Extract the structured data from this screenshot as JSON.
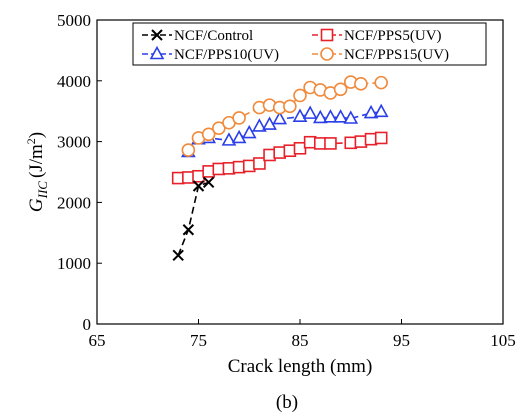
{
  "chart_data": {
    "type": "scatter",
    "xlabel": "Crack length (mm)",
    "ylabel_main": "G",
    "ylabel_sub": "IIC",
    "ylabel_unit": "(J/m",
    "ylabel_sup": "2",
    "ylabel_close": ")",
    "panel_label": "(b)",
    "xlim": [
      65,
      105
    ],
    "ylim": [
      0,
      5000
    ],
    "xticks": [
      65,
      75,
      85,
      95,
      105
    ],
    "yticks": [
      0,
      1000,
      2000,
      3000,
      4000,
      5000
    ],
    "grid": false,
    "legend_position": "top",
    "series": [
      {
        "name": "NCF/Control",
        "color": "#000000",
        "marker": "x",
        "line": "dashed",
        "x": [
          73.0,
          74.0,
          75.0,
          76.0
        ],
        "y": [
          1130,
          1550,
          2270,
          2330
        ]
      },
      {
        "name": "NCF/PPS5(UV)",
        "color": "#e8202a",
        "marker": "square",
        "line": "dashed",
        "x": [
          73.0,
          74.0,
          75.0,
          76.0,
          77.0,
          78.0,
          79.0,
          80.0,
          81.0,
          82.0,
          83.0,
          84.0,
          85.0,
          86.0,
          87.0,
          88.0,
          90.0,
          91.0,
          92.0,
          93.0
        ],
        "y": [
          2400,
          2410,
          2430,
          2510,
          2550,
          2560,
          2580,
          2600,
          2640,
          2780,
          2820,
          2850,
          2890,
          2990,
          2970,
          2970,
          2980,
          3000,
          3040,
          3060
        ]
      },
      {
        "name": "NCF/PPS10(UV)",
        "color": "#2a3fe8",
        "marker": "triangle",
        "line": "dashed",
        "x": [
          74.0,
          75.0,
          76.0,
          78.0,
          79.0,
          80.0,
          81.0,
          82.0,
          83.0,
          85.0,
          86.0,
          87.0,
          88.0,
          89.0,
          90.0,
          92.0,
          93.0
        ],
        "y": [
          2830,
          3040,
          3060,
          3020,
          3060,
          3140,
          3250,
          3280,
          3370,
          3410,
          3460,
          3390,
          3400,
          3400,
          3380,
          3470,
          3490
        ]
      },
      {
        "name": "NCF/PPS15(UV)",
        "color": "#f08a3c",
        "marker": "circle",
        "line": "dashed",
        "x": [
          74.0,
          75.0,
          76.0,
          77.0,
          78.0,
          79.0,
          81.0,
          82.0,
          83.0,
          84.0,
          85.0,
          86.0,
          87.0,
          88.0,
          89.0,
          90.0,
          91.0,
          93.0
        ],
        "y": [
          2860,
          3060,
          3120,
          3220,
          3310,
          3390,
          3560,
          3600,
          3560,
          3580,
          3760,
          3890,
          3850,
          3800,
          3860,
          3980,
          3950,
          3970
        ]
      }
    ]
  }
}
